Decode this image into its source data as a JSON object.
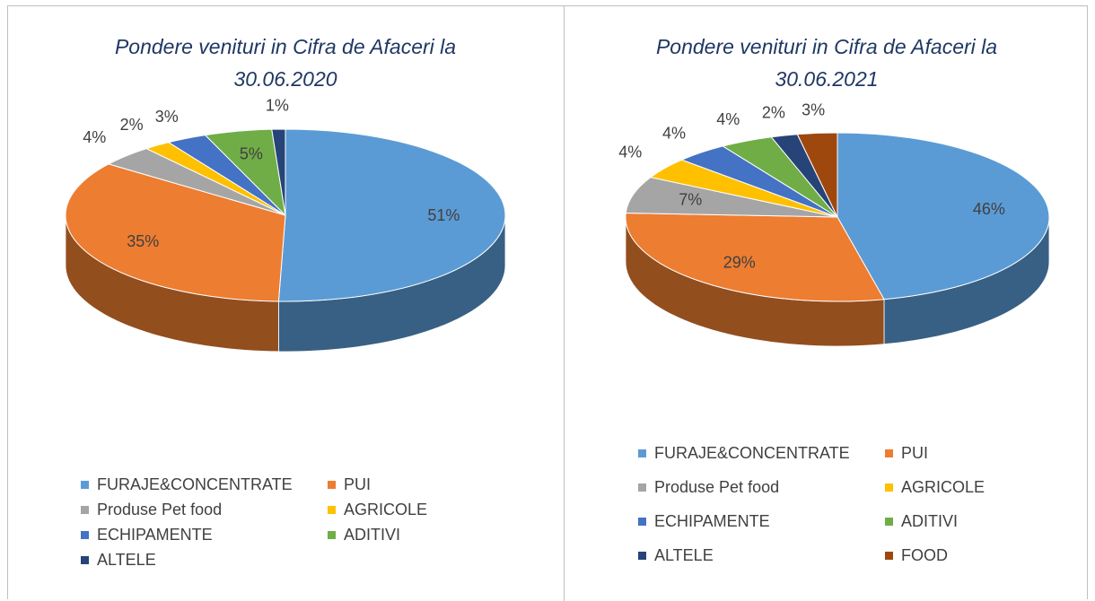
{
  "chart_data": [
    {
      "type": "pie",
      "title": "Pondere venituri in Cifra de Afaceri la 30.06.2020",
      "categories": [
        "FURAJE&CONCENTRATE",
        "PUI",
        "Produse Pet food",
        "AGRICOLE",
        "ECHIPAMENTE",
        "ADITIVI",
        "ALTELE"
      ],
      "values": [
        51,
        35,
        4,
        2,
        3,
        5,
        1
      ],
      "value_labels": [
        "51%",
        "35%",
        "4%",
        "2%",
        "3%",
        "5%",
        "1%"
      ],
      "colors": [
        "#5b9bd5",
        "#ed7d31",
        "#a5a5a5",
        "#ffc000",
        "#4472c4",
        "#70ad47",
        "#264478"
      ]
    },
    {
      "type": "pie",
      "title": "Pondere venituri in Cifra de Afaceri la 30.06.2021",
      "categories": [
        "FURAJE&CONCENTRATE",
        "PUI",
        "Produse Pet food",
        "AGRICOLE",
        "ECHIPAMENTE",
        "ADITIVI",
        "ALTELE",
        "FOOD"
      ],
      "values": [
        46,
        29,
        7,
        4,
        4,
        4,
        2,
        3
      ],
      "value_labels": [
        "46%",
        "29%",
        "7%",
        "4%",
        "4%",
        "4%",
        "2%",
        "3%"
      ],
      "colors": [
        "#5b9bd5",
        "#ed7d31",
        "#a5a5a5",
        "#ffc000",
        "#4472c4",
        "#70ad47",
        "#264478",
        "#9e480e"
      ]
    }
  ]
}
